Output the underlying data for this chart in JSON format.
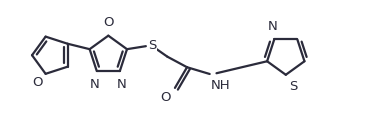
{
  "bg_color": "#ffffff",
  "line_color": "#2b2b3b",
  "line_width": 1.6,
  "font_size": 9.5,
  "figsize": [
    3.79,
    1.33
  ],
  "dpi": 100,
  "xlim": [
    0,
    10
  ],
  "ylim": [
    0,
    3.5
  ]
}
